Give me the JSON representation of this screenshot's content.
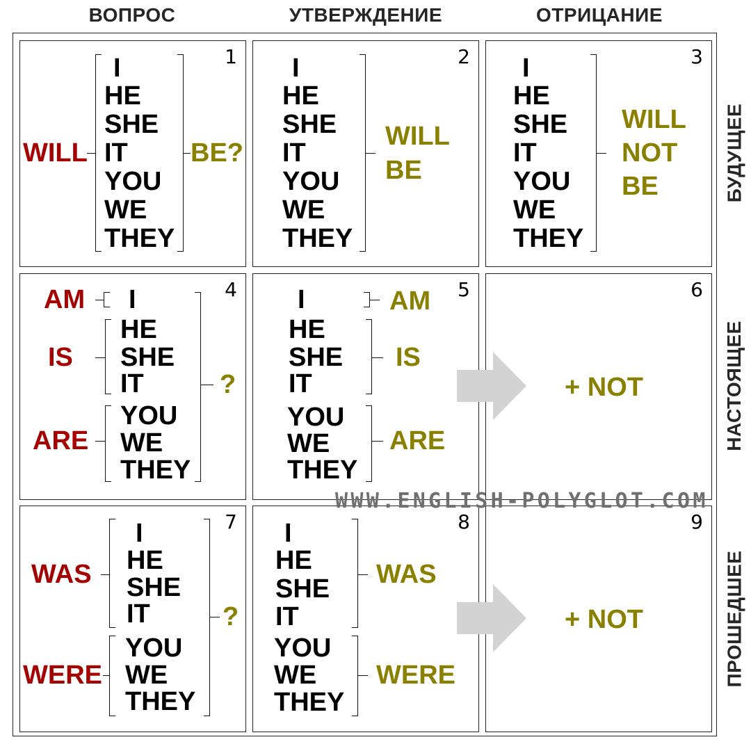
{
  "columns": [
    "ВОПРОС",
    "УТВЕРЖДЕНИЕ",
    "ОТРИЦАНИЕ"
  ],
  "rows": [
    "БУДУЩЕЕ",
    "НАСТОЯЩЕЕ",
    "ПРОШЕДШЕЕ"
  ],
  "watermark": "WWW.ENGLISH-POLYGLOT.COM",
  "pronouns": [
    "I",
    "HE",
    "SHE",
    "IT",
    "YOU",
    "WE",
    "THEY"
  ],
  "cells": {
    "c1": {
      "num": "1",
      "aux": "WILL",
      "tail": "BE?"
    },
    "c2": {
      "num": "2",
      "verb_line1": "WILL",
      "verb_line2": "BE"
    },
    "c3": {
      "num": "3",
      "verb_line1": "WILL",
      "verb_line2": "NOT",
      "verb_line3": "BE"
    },
    "c4": {
      "num": "4",
      "am": "AM",
      "is": "IS",
      "are": "ARE",
      "tail": "?"
    },
    "c5": {
      "num": "5",
      "am": "AM",
      "is": "IS",
      "are": "ARE"
    },
    "c6": {
      "num": "6",
      "plus_not": "+ NOT"
    },
    "c7": {
      "num": "7",
      "was": "WAS",
      "were": "WERE",
      "tail": "?"
    },
    "c8": {
      "num": "8",
      "was": "WAS",
      "were": "WERE"
    },
    "c9": {
      "num": "9",
      "plus_not": "+ NOT"
    }
  },
  "colors": {
    "question_aux": "#a50000",
    "verb": "#8a8000",
    "arrow": "#d3d3d3"
  }
}
